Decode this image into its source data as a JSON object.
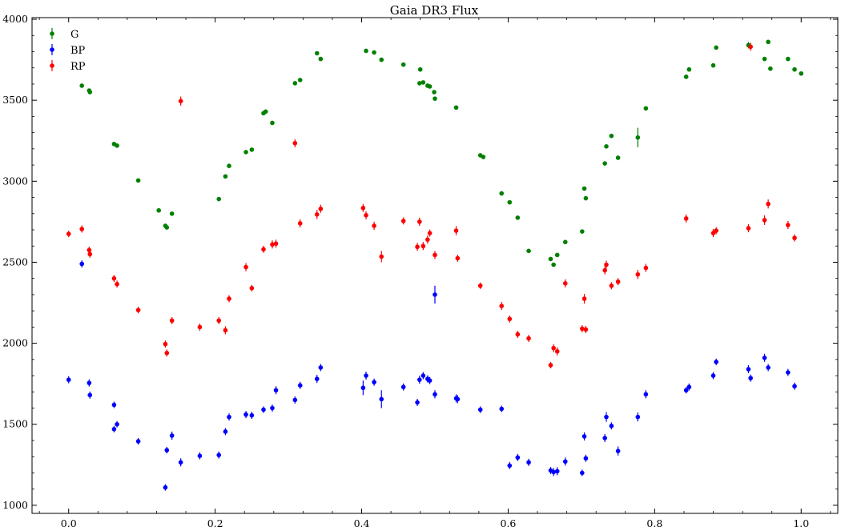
{
  "chart_data": {
    "type": "scatter",
    "title": "Gaia DR3 Flux",
    "xlabel": "",
    "ylabel": "",
    "xlim": [
      -0.05,
      1.05
    ],
    "ylim": [
      950,
      4010
    ],
    "x_ticks": [
      "0.0",
      "0.2",
      "0.4",
      "0.6",
      "0.8",
      "1.0"
    ],
    "y_ticks": [
      "1000",
      "1500",
      "2000",
      "2500",
      "3000",
      "3500",
      "4000"
    ],
    "x_tick_values": [
      0.0,
      0.2,
      0.4,
      0.6,
      0.8,
      1.0
    ],
    "y_tick_values": [
      1000,
      1500,
      2000,
      2500,
      3000,
      3500,
      4000
    ],
    "grid": false,
    "legend": "top-left",
    "series": [
      {
        "name": "G",
        "color": "#008000",
        "points": [
          [
            0.018,
            3590,
            8
          ],
          [
            0.028,
            3560,
            8
          ],
          [
            0.029,
            3550,
            8
          ],
          [
            0.062,
            3230,
            8
          ],
          [
            0.066,
            3220,
            8
          ],
          [
            0.095,
            3005,
            8
          ],
          [
            0.123,
            2820,
            8
          ],
          [
            0.132,
            2725,
            8
          ],
          [
            0.134,
            2715,
            8
          ],
          [
            0.141,
            2800,
            8
          ],
          [
            0.205,
            2890,
            8
          ],
          [
            0.214,
            3030,
            8
          ],
          [
            0.219,
            3095,
            8
          ],
          [
            0.242,
            3180,
            8
          ],
          [
            0.25,
            3195,
            8
          ],
          [
            0.266,
            3420,
            8
          ],
          [
            0.269,
            3430,
            8
          ],
          [
            0.278,
            3360,
            8
          ],
          [
            0.309,
            3605,
            8
          ],
          [
            0.316,
            3625,
            8
          ],
          [
            0.339,
            3790,
            8
          ],
          [
            0.344,
            3755,
            8
          ],
          [
            0.406,
            3805,
            8
          ],
          [
            0.417,
            3795,
            8
          ],
          [
            0.427,
            3750,
            8
          ],
          [
            0.457,
            3720,
            8
          ],
          [
            0.48,
            3690,
            8
          ],
          [
            0.479,
            3605,
            8
          ],
          [
            0.484,
            3610,
            8
          ],
          [
            0.49,
            3590,
            8
          ],
          [
            0.493,
            3585,
            8
          ],
          [
            0.499,
            3550,
            8
          ],
          [
            0.5,
            3510,
            8
          ],
          [
            0.529,
            3455,
            8
          ],
          [
            0.562,
            3160,
            8
          ],
          [
            0.566,
            3150,
            8
          ],
          [
            0.591,
            2925,
            8
          ],
          [
            0.602,
            2870,
            8
          ],
          [
            0.613,
            2775,
            8
          ],
          [
            0.628,
            2570,
            8
          ],
          [
            0.658,
            2520,
            8
          ],
          [
            0.662,
            2485,
            8
          ],
          [
            0.667,
            2545,
            8
          ],
          [
            0.678,
            2625,
            8
          ],
          [
            0.701,
            2690,
            8
          ],
          [
            0.704,
            2955,
            8
          ],
          [
            0.706,
            2895,
            8
          ],
          [
            0.732,
            3110,
            8
          ],
          [
            0.734,
            3215,
            8
          ],
          [
            0.741,
            3280,
            8
          ],
          [
            0.75,
            3145,
            8
          ],
          [
            0.777,
            3270,
            60
          ],
          [
            0.788,
            3450,
            8
          ],
          [
            0.843,
            3645,
            8
          ],
          [
            0.847,
            3690,
            8
          ],
          [
            0.88,
            3715,
            10
          ],
          [
            0.884,
            3825,
            8
          ],
          [
            0.928,
            3840,
            20
          ],
          [
            0.95,
            3755,
            8
          ],
          [
            0.955,
            3860,
            8
          ],
          [
            0.958,
            3695,
            8
          ],
          [
            0.982,
            3755,
            8
          ],
          [
            0.991,
            3690,
            8
          ],
          [
            1.0,
            3665,
            8
          ]
        ]
      },
      {
        "name": "BP",
        "color": "#0000ff",
        "points": [
          [
            0.0,
            1775,
            22
          ],
          [
            0.018,
            2490,
            22
          ],
          [
            0.028,
            1755,
            22
          ],
          [
            0.029,
            1680,
            22
          ],
          [
            0.062,
            1620,
            20
          ],
          [
            0.062,
            1470,
            20
          ],
          [
            0.066,
            1500,
            20
          ],
          [
            0.095,
            1395,
            20
          ],
          [
            0.132,
            1110,
            20
          ],
          [
            0.134,
            1340,
            20
          ],
          [
            0.141,
            1430,
            25
          ],
          [
            0.153,
            1265,
            25
          ],
          [
            0.179,
            1305,
            22
          ],
          [
            0.205,
            1310,
            22
          ],
          [
            0.214,
            1455,
            22
          ],
          [
            0.219,
            1545,
            22
          ],
          [
            0.242,
            1560,
            22
          ],
          [
            0.25,
            1555,
            22
          ],
          [
            0.266,
            1590,
            20
          ],
          [
            0.278,
            1600,
            22
          ],
          [
            0.283,
            1710,
            25
          ],
          [
            0.309,
            1650,
            22
          ],
          [
            0.316,
            1740,
            22
          ],
          [
            0.339,
            1780,
            25
          ],
          [
            0.344,
            1850,
            22
          ],
          [
            0.402,
            1725,
            45
          ],
          [
            0.406,
            1800,
            25
          ],
          [
            0.417,
            1760,
            22
          ],
          [
            0.427,
            1655,
            55
          ],
          [
            0.457,
            1730,
            22
          ],
          [
            0.476,
            1635,
            22
          ],
          [
            0.479,
            1775,
            25
          ],
          [
            0.484,
            1800,
            22
          ],
          [
            0.49,
            1780,
            22
          ],
          [
            0.493,
            1770,
            22
          ],
          [
            0.5,
            1685,
            25
          ],
          [
            0.5,
            2300,
            55
          ],
          [
            0.529,
            1660,
            25
          ],
          [
            0.531,
            1655,
            25
          ],
          [
            0.562,
            1590,
            20
          ],
          [
            0.591,
            1595,
            20
          ],
          [
            0.602,
            1245,
            22
          ],
          [
            0.613,
            1295,
            22
          ],
          [
            0.628,
            1265,
            22
          ],
          [
            0.658,
            1215,
            22
          ],
          [
            0.662,
            1205,
            25
          ],
          [
            0.667,
            1210,
            25
          ],
          [
            0.678,
            1270,
            25
          ],
          [
            0.701,
            1200,
            20
          ],
          [
            0.704,
            1425,
            25
          ],
          [
            0.706,
            1290,
            22
          ],
          [
            0.732,
            1415,
            25
          ],
          [
            0.734,
            1545,
            30
          ],
          [
            0.741,
            1490,
            22
          ],
          [
            0.75,
            1335,
            28
          ],
          [
            0.777,
            1545,
            28
          ],
          [
            0.788,
            1685,
            25
          ],
          [
            0.843,
            1710,
            20
          ],
          [
            0.847,
            1730,
            22
          ],
          [
            0.88,
            1800,
            22
          ],
          [
            0.884,
            1885,
            20
          ],
          [
            0.928,
            1840,
            25
          ],
          [
            0.931,
            1785,
            22
          ],
          [
            0.95,
            1910,
            25
          ],
          [
            0.955,
            1850,
            22
          ],
          [
            0.982,
            1820,
            22
          ],
          [
            0.991,
            1735,
            22
          ]
        ]
      },
      {
        "name": "RP",
        "color": "#ff0000",
        "points": [
          [
            0.0,
            2675,
            20
          ],
          [
            0.018,
            2705,
            22
          ],
          [
            0.028,
            2575,
            22
          ],
          [
            0.029,
            2550,
            22
          ],
          [
            0.062,
            2400,
            22
          ],
          [
            0.066,
            2365,
            22
          ],
          [
            0.095,
            2205,
            20
          ],
          [
            0.132,
            1995,
            22
          ],
          [
            0.134,
            1940,
            22
          ],
          [
            0.141,
            2140,
            22
          ],
          [
            0.153,
            3495,
            28
          ],
          [
            0.179,
            2100,
            22
          ],
          [
            0.205,
            2140,
            22
          ],
          [
            0.214,
            2080,
            25
          ],
          [
            0.219,
            2275,
            22
          ],
          [
            0.242,
            2470,
            25
          ],
          [
            0.25,
            2340,
            20
          ],
          [
            0.266,
            2580,
            22
          ],
          [
            0.278,
            2610,
            25
          ],
          [
            0.283,
            2615,
            25
          ],
          [
            0.309,
            3235,
            25
          ],
          [
            0.316,
            2740,
            25
          ],
          [
            0.339,
            2795,
            28
          ],
          [
            0.344,
            2830,
            25
          ],
          [
            0.402,
            2835,
            25
          ],
          [
            0.406,
            2790,
            25
          ],
          [
            0.417,
            2725,
            25
          ],
          [
            0.427,
            2535,
            35
          ],
          [
            0.457,
            2755,
            22
          ],
          [
            0.476,
            2595,
            25
          ],
          [
            0.479,
            2750,
            25
          ],
          [
            0.484,
            2600,
            25
          ],
          [
            0.49,
            2640,
            25
          ],
          [
            0.493,
            2680,
            22
          ],
          [
            0.5,
            2545,
            25
          ],
          [
            0.529,
            2695,
            28
          ],
          [
            0.531,
            2525,
            22
          ],
          [
            0.562,
            2355,
            20
          ],
          [
            0.591,
            2230,
            25
          ],
          [
            0.602,
            2150,
            22
          ],
          [
            0.613,
            2055,
            22
          ],
          [
            0.628,
            2030,
            22
          ],
          [
            0.658,
            1865,
            20
          ],
          [
            0.662,
            1970,
            25
          ],
          [
            0.667,
            1950,
            25
          ],
          [
            0.678,
            2370,
            25
          ],
          [
            0.701,
            2090,
            22
          ],
          [
            0.704,
            2275,
            30
          ],
          [
            0.706,
            2085,
            22
          ],
          [
            0.732,
            2450,
            25
          ],
          [
            0.734,
            2485,
            25
          ],
          [
            0.741,
            2355,
            22
          ],
          [
            0.75,
            2380,
            22
          ],
          [
            0.777,
            2425,
            28
          ],
          [
            0.788,
            2465,
            25
          ],
          [
            0.843,
            2770,
            25
          ],
          [
            0.88,
            2680,
            25
          ],
          [
            0.884,
            2695,
            22
          ],
          [
            0.928,
            2710,
            25
          ],
          [
            0.931,
            3830,
            25
          ],
          [
            0.95,
            2760,
            30
          ],
          [
            0.955,
            2860,
            28
          ],
          [
            0.982,
            2730,
            25
          ],
          [
            0.991,
            2650,
            22
          ]
        ]
      }
    ]
  }
}
